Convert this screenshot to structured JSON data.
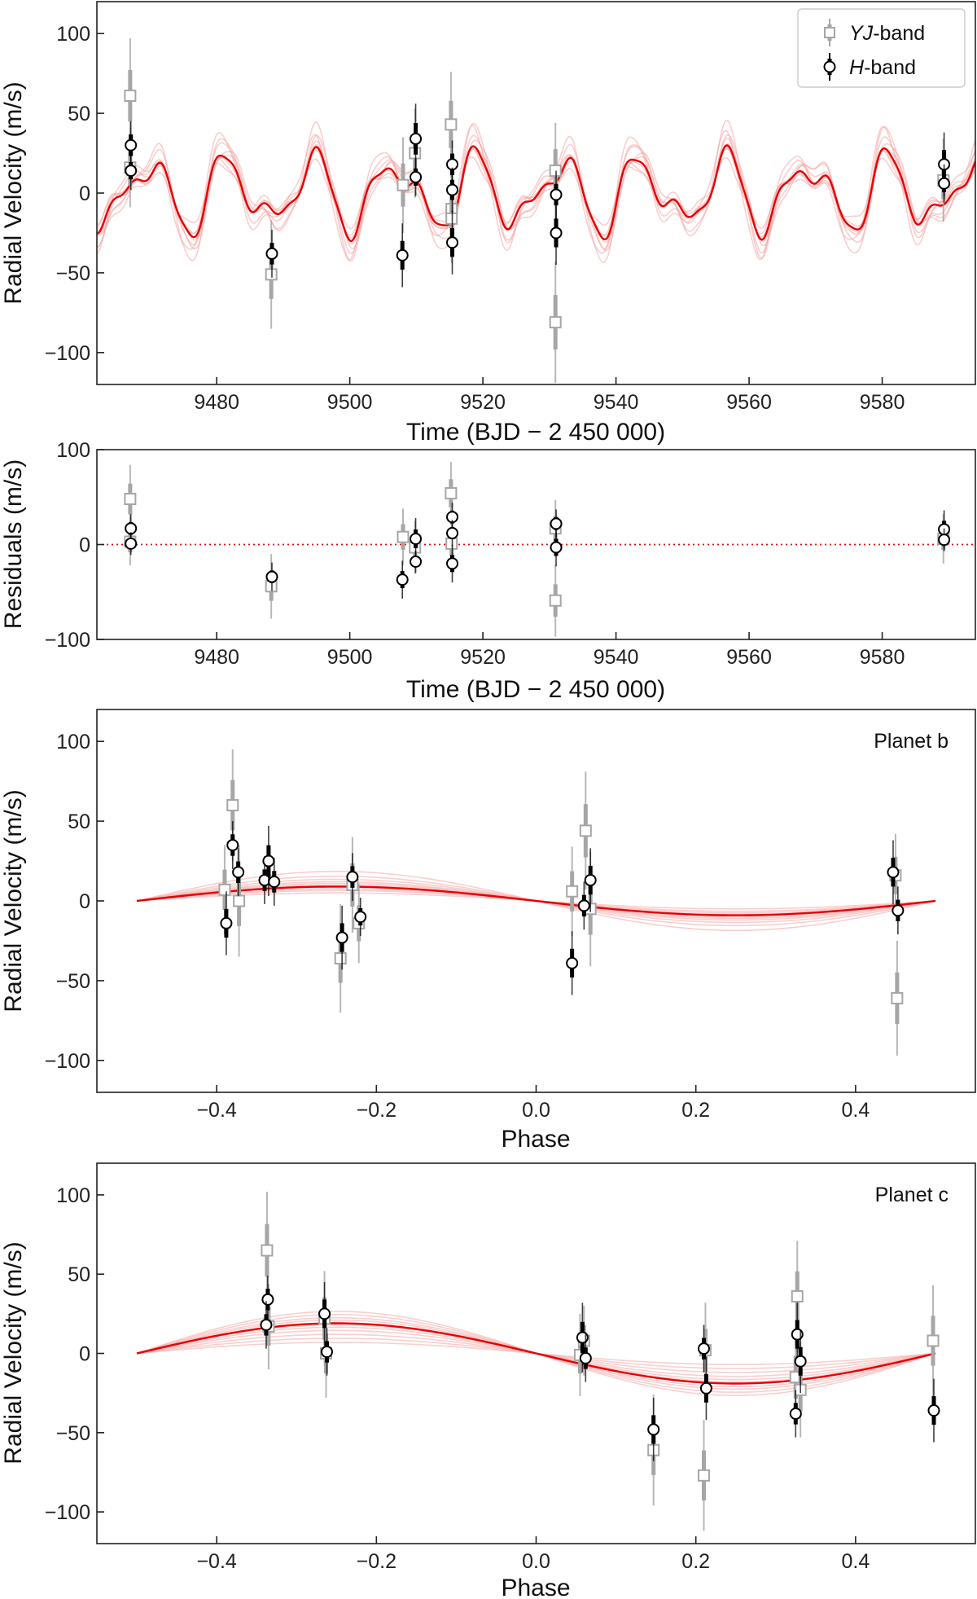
{
  "colors": {
    "yj": "#a6a6a6",
    "h": "#000000",
    "model": "#e60000",
    "model_light": "#f4a6a6",
    "zero_line": "#e60000"
  },
  "legend": {
    "yj_prefix": "YJ",
    "yj_suffix": "-band",
    "h_prefix": "H",
    "h_suffix": "-band"
  },
  "chart_data": [
    {
      "id": "time_series",
      "type": "scatter",
      "xlabel": "Time (BJD − 2 450 000)",
      "ylabel": "Radial Velocity (m/s)",
      "xlim": [
        9462,
        9594
      ],
      "ylim": [
        -120,
        120
      ],
      "xticks": [
        9480,
        9500,
        9520,
        9540,
        9560,
        9580
      ],
      "yticks": [
        -100,
        -50,
        0,
        50,
        100
      ],
      "ytick_labels": [
        "−100",
        "−50",
        "0",
        "50",
        "100"
      ],
      "legend_position": "top-right",
      "model": "sum of two sinusoids (P≈7.7 d, K≈10 m/s and P≈12.4 d, K≈19 m/s) with a faint band of posterior draws",
      "series": [
        {
          "name": "YJ-band",
          "marker": "square",
          "points": [
            {
              "x": 9467.0,
              "y": 61,
              "err": 36
            },
            {
              "x": 9467.0,
              "y": 16,
              "err": 25
            },
            {
              "x": 9488.2,
              "y": -51,
              "err": 34
            },
            {
              "x": 9508.0,
              "y": 5,
              "err": 30
            },
            {
              "x": 9509.8,
              "y": 25,
              "err": 28
            },
            {
              "x": 9515.2,
              "y": 43,
              "err": 33
            },
            {
              "x": 9515.3,
              "y": -10,
              "err": 30
            },
            {
              "x": 9515.3,
              "y": -16,
              "err": 28
            },
            {
              "x": 9530.9,
              "y": 14,
              "err": 30
            },
            {
              "x": 9530.9,
              "y": -81,
              "err": 38
            },
            {
              "x": 9589.2,
              "y": 8,
              "err": 26
            }
          ]
        },
        {
          "name": "H-band",
          "marker": "circle",
          "points": [
            {
              "x": 9467.1,
              "y": 30,
              "err": 15
            },
            {
              "x": 9467.1,
              "y": 14,
              "err": 12
            },
            {
              "x": 9488.3,
              "y": -38,
              "err": 15
            },
            {
              "x": 9507.9,
              "y": -39,
              "err": 20
            },
            {
              "x": 9509.9,
              "y": 34,
              "err": 22
            },
            {
              "x": 9509.9,
              "y": 10,
              "err": 12
            },
            {
              "x": 9515.4,
              "y": 18,
              "err": 15
            },
            {
              "x": 9515.4,
              "y": 2,
              "err": 14
            },
            {
              "x": 9515.4,
              "y": -31,
              "err": 20
            },
            {
              "x": 9531.0,
              "y": -1,
              "err": 15
            },
            {
              "x": 9531.0,
              "y": -25,
              "err": 20
            },
            {
              "x": 9589.3,
              "y": 18,
              "err": 20
            },
            {
              "x": 9589.3,
              "y": 6,
              "err": 12
            }
          ]
        }
      ]
    },
    {
      "id": "residuals",
      "type": "scatter",
      "xlabel": "Time (BJD − 2 450 000)",
      "ylabel": "Residuals (m/s)",
      "xlim": [
        9462,
        9594
      ],
      "ylim": [
        -100,
        100
      ],
      "xticks": [
        9480,
        9500,
        9520,
        9540,
        9560,
        9580
      ],
      "yticks": [
        -100,
        0,
        100
      ],
      "ytick_labels": [
        "−100",
        "0",
        "100"
      ],
      "reference_line": 0,
      "series": [
        {
          "name": "YJ-band",
          "marker": "square",
          "points": [
            {
              "x": 9467.0,
              "y": 48,
              "err": 36
            },
            {
              "x": 9467.0,
              "y": 3,
              "err": 25
            },
            {
              "x": 9488.2,
              "y": -44,
              "err": 34
            },
            {
              "x": 9508.0,
              "y": 8,
              "err": 30
            },
            {
              "x": 9509.8,
              "y": -3,
              "err": 28
            },
            {
              "x": 9515.2,
              "y": 54,
              "err": 33
            },
            {
              "x": 9515.3,
              "y": 1,
              "err": 30
            },
            {
              "x": 9530.9,
              "y": 17,
              "err": 30
            },
            {
              "x": 9530.9,
              "y": -59,
              "err": 38
            },
            {
              "x": 9589.2,
              "y": 6,
              "err": 26
            }
          ]
        },
        {
          "name": "H-band",
          "marker": "circle",
          "points": [
            {
              "x": 9467.1,
              "y": 17,
              "err": 15
            },
            {
              "x": 9467.1,
              "y": 1,
              "err": 12
            },
            {
              "x": 9488.3,
              "y": -34,
              "err": 15
            },
            {
              "x": 9507.9,
              "y": -37,
              "err": 20
            },
            {
              "x": 9509.9,
              "y": 6,
              "err": 22
            },
            {
              "x": 9509.9,
              "y": -18,
              "err": 12
            },
            {
              "x": 9515.4,
              "y": 29,
              "err": 15
            },
            {
              "x": 9515.4,
              "y": 12,
              "err": 14
            },
            {
              "x": 9515.4,
              "y": -20,
              "err": 20
            },
            {
              "x": 9531.0,
              "y": 22,
              "err": 15
            },
            {
              "x": 9531.0,
              "y": -3,
              "err": 20
            },
            {
              "x": 9589.3,
              "y": 16,
              "err": 20
            },
            {
              "x": 9589.3,
              "y": 5,
              "err": 12
            }
          ]
        }
      ]
    },
    {
      "id": "planet_b",
      "type": "scatter",
      "annotation": "Planet b",
      "xlabel": "Phase",
      "ylabel": "Radial Velocity (m/s)",
      "xlim": [
        -0.55,
        0.55
      ],
      "ylim": [
        -120,
        120
      ],
      "xticks": [
        -0.4,
        -0.2,
        0.0,
        0.2,
        0.4
      ],
      "xtick_labels": [
        "−0.4",
        "−0.2",
        "0.0",
        "0.2",
        "0.4"
      ],
      "yticks": [
        -100,
        -50,
        0,
        50,
        100
      ],
      "ytick_labels": [
        "−100",
        "−50",
        "0",
        "50",
        "100"
      ],
      "model": {
        "amplitude": 9,
        "draw_amplitudes": [
          5,
          6.5,
          7.5,
          8.5,
          10,
          11,
          12,
          13.5,
          15.5,
          18.5
        ],
        "phase_range": [
          -0.5,
          0.5
        ]
      },
      "series": [
        {
          "name": "YJ-band",
          "marker": "square",
          "points": [
            {
              "x": -0.39,
              "y": 7,
              "err": 28
            },
            {
              "x": -0.38,
              "y": 60,
              "err": 35
            },
            {
              "x": -0.372,
              "y": 0,
              "err": 35
            },
            {
              "x": -0.245,
              "y": -36,
              "err": 34
            },
            {
              "x": -0.23,
              "y": 10,
              "err": 30
            },
            {
              "x": -0.222,
              "y": -14,
              "err": 25
            },
            {
              "x": 0.045,
              "y": 6,
              "err": 28
            },
            {
              "x": 0.062,
              "y": 44,
              "err": 37
            },
            {
              "x": 0.068,
              "y": -5,
              "err": 36
            },
            {
              "x": 0.45,
              "y": 16,
              "err": 26
            },
            {
              "x": 0.452,
              "y": -61,
              "err": 36
            }
          ]
        },
        {
          "name": "H-band",
          "marker": "circle",
          "points": [
            {
              "x": -0.388,
              "y": -14,
              "err": 20
            },
            {
              "x": -0.38,
              "y": 35,
              "err": 15
            },
            {
              "x": -0.373,
              "y": 18,
              "err": 15
            },
            {
              "x": -0.34,
              "y": 13,
              "err": 15
            },
            {
              "x": -0.335,
              "y": 25,
              "err": 22
            },
            {
              "x": -0.328,
              "y": 12,
              "err": 15
            },
            {
              "x": -0.243,
              "y": -23,
              "err": 20
            },
            {
              "x": -0.23,
              "y": 15,
              "err": 15
            },
            {
              "x": -0.22,
              "y": -10,
              "err": 12
            },
            {
              "x": 0.045,
              "y": -39,
              "err": 20
            },
            {
              "x": 0.06,
              "y": -3,
              "err": 15
            },
            {
              "x": 0.068,
              "y": 13,
              "err": 20
            },
            {
              "x": 0.447,
              "y": 18,
              "err": 20
            },
            {
              "x": 0.453,
              "y": -6,
              "err": 15
            }
          ]
        }
      ]
    },
    {
      "id": "planet_c",
      "type": "scatter",
      "annotation": "Planet c",
      "xlabel": "Phase",
      "ylabel": "Radial Velocity (m/s)",
      "xlim": [
        -0.55,
        0.55
      ],
      "ylim": [
        -120,
        120
      ],
      "xticks": [
        -0.4,
        -0.2,
        0.0,
        0.2,
        0.4
      ],
      "xtick_labels": [
        "−0.4",
        "−0.2",
        "0.0",
        "0.2",
        "0.4"
      ],
      "yticks": [
        -100,
        -50,
        0,
        50,
        100
      ],
      "ytick_labels": [
        "−100",
        "−50",
        "0",
        "50",
        "100"
      ],
      "model": {
        "amplitude": 19,
        "draw_amplitudes": [
          7,
          9.5,
          12,
          14.5,
          16.5,
          18,
          21,
          22.5,
          24.5,
          26.5
        ],
        "phase_range": [
          -0.5,
          0.5
        ]
      },
      "series": [
        {
          "name": "YJ-band",
          "marker": "square",
          "points": [
            {
              "x": -0.337,
              "y": 65,
              "err": 37
            },
            {
              "x": -0.335,
              "y": 17,
              "err": 27
            },
            {
              "x": -0.265,
              "y": 22,
              "err": 30
            },
            {
              "x": -0.263,
              "y": 0,
              "err": 28
            },
            {
              "x": 0.055,
              "y": -1,
              "err": 26
            },
            {
              "x": 0.06,
              "y": 8,
              "err": 22
            },
            {
              "x": 0.147,
              "y": -61,
              "err": 35
            },
            {
              "x": 0.21,
              "y": -77,
              "err": 35
            },
            {
              "x": 0.212,
              "y": 2,
              "err": 30
            },
            {
              "x": 0.325,
              "y": -15,
              "err": 30
            },
            {
              "x": 0.327,
              "y": 36,
              "err": 35
            },
            {
              "x": 0.331,
              "y": -23,
              "err": 30
            },
            {
              "x": 0.497,
              "y": 8,
              "err": 35
            }
          ]
        },
        {
          "name": "H-band",
          "marker": "circle",
          "points": [
            {
              "x": -0.336,
              "y": 34,
              "err": 15
            },
            {
              "x": -0.338,
              "y": 18,
              "err": 15
            },
            {
              "x": -0.265,
              "y": 25,
              "err": 20
            },
            {
              "x": -0.262,
              "y": 1,
              "err": 15
            },
            {
              "x": 0.058,
              "y": 10,
              "err": 22
            },
            {
              "x": 0.062,
              "y": -3,
              "err": 15
            },
            {
              "x": 0.147,
              "y": -48,
              "err": 20
            },
            {
              "x": 0.21,
              "y": 3,
              "err": 15
            },
            {
              "x": 0.213,
              "y": -22,
              "err": 20
            },
            {
              "x": 0.325,
              "y": -38,
              "err": 15
            },
            {
              "x": 0.327,
              "y": 12,
              "err": 20
            },
            {
              "x": 0.331,
              "y": -5,
              "err": 20
            },
            {
              "x": 0.498,
              "y": -36,
              "err": 20
            }
          ]
        }
      ]
    }
  ]
}
